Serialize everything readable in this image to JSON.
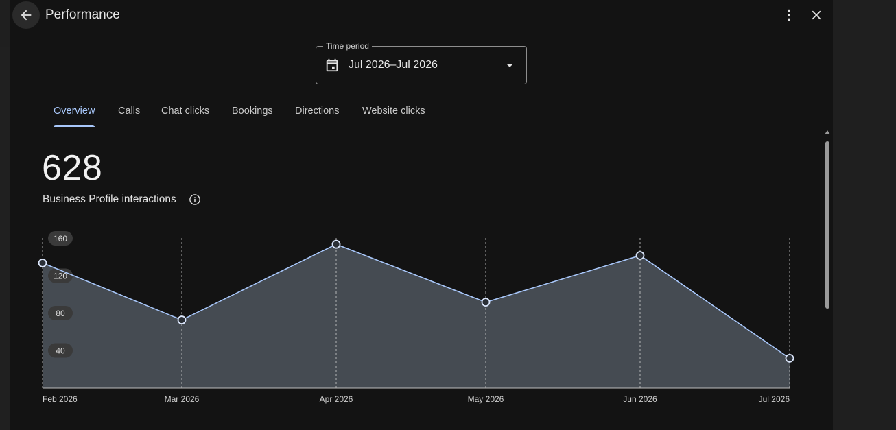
{
  "dialog": {
    "title": "Performance",
    "back_icon": "arrow-back-icon",
    "more_icon": "more-vert-icon",
    "close_icon": "close-icon"
  },
  "time_period": {
    "label": "Time period",
    "value": "Jul 2026–Jul 2026"
  },
  "tabs": [
    {
      "label": "Overview",
      "active": true
    },
    {
      "label": "Calls"
    },
    {
      "label": "Chat clicks"
    },
    {
      "label": "Bookings"
    },
    {
      "label": "Directions"
    },
    {
      "label": "Website clicks"
    }
  ],
  "summary": {
    "total": "628",
    "label": "Business Profile interactions"
  },
  "chart_data": {
    "type": "area",
    "categories": [
      "Feb 2026",
      "Mar 2026",
      "Apr 2026",
      "May 2026",
      "Jun 2026",
      "Jul 2026"
    ],
    "values": [
      134,
      73,
      154,
      92,
      142,
      32
    ],
    "y_ticks": [
      160,
      120,
      80,
      40
    ],
    "ylim": [
      0,
      160
    ],
    "grid": "vertical dashed",
    "line_color": "#a8c7fa",
    "fill_color": "#454b52"
  },
  "colors": {
    "accent": "#a8c7fa",
    "background": "#131313"
  }
}
